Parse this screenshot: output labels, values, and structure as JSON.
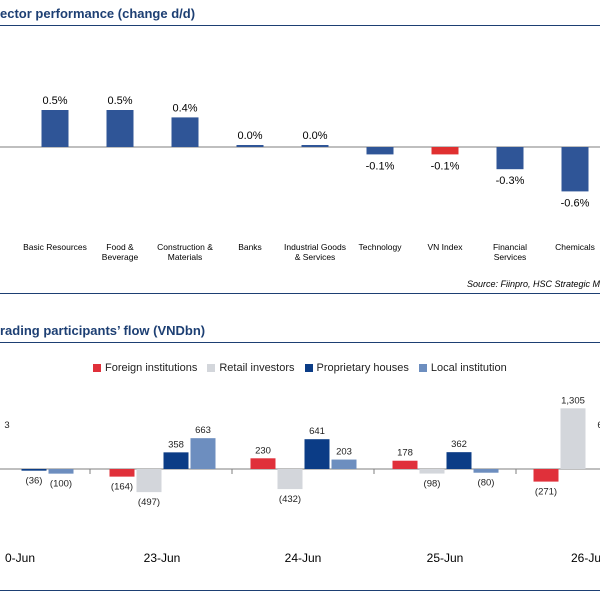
{
  "panels": {
    "sector": {
      "title": "ector performance (change d/d)",
      "source": "Source: Fiinpro, HSC Strategic M"
    },
    "flow": {
      "title": "rading participants’ flow (VNDbn)"
    }
  },
  "chart_data": [
    {
      "type": "bar",
      "title": "ector performance (change d/d)",
      "categories": [
        [
          "Basic Resources"
        ],
        [
          "Food &",
          "Beverage"
        ],
        [
          "Construction &",
          "Materials"
        ],
        [
          "Banks"
        ],
        [
          "Industrial Goods",
          "& Services"
        ],
        [
          "Technology"
        ],
        [
          "VN Index"
        ],
        [
          "Financial",
          "Services"
        ],
        [
          "Chemicals"
        ]
      ],
      "values": [
        0.5,
        0.5,
        0.4,
        0.0,
        0.0,
        -0.1,
        -0.1,
        -0.3,
        -0.6
      ],
      "value_labels": [
        "0.5%",
        "0.5%",
        "0.4%",
        "0.0%",
        "0.0%",
        "-0.1%",
        "-0.1%",
        "-0.3%",
        "-0.6%"
      ],
      "highlight_index": 6,
      "colors": {
        "bar": "#2f5597",
        "highlight": "#e03030"
      },
      "ylim": [
        -0.7,
        0.8
      ],
      "grid": false
    },
    {
      "type": "bar",
      "title": "rading participants’ flow (VNDbn)",
      "categories": [
        "0-Jun",
        "23-Jun",
        "24-Jun",
        "25-Jun",
        "26-Ju"
      ],
      "series": [
        {
          "name": "Foreign institutions",
          "color": "#e0303a",
          "values": [
            null,
            -164,
            230,
            178,
            -271
          ],
          "labels": [
            "",
            "(164)",
            "230",
            "178",
            "(271)"
          ]
        },
        {
          "name": "Retail investors",
          "color": "#d3d6db",
          "values": [
            null,
            -497,
            -432,
            -98,
            1305
          ],
          "labels": [
            "3",
            "(497)",
            "(432)",
            "(98)",
            "1,305"
          ]
        },
        {
          "name": "Proprietary houses",
          "color": "#0b3c86",
          "values": [
            -36,
            358,
            641,
            362,
            null
          ],
          "labels": [
            "(36)",
            "358",
            "641",
            "362",
            "6"
          ]
        },
        {
          "name": "Local institution",
          "color": "#6d8ebf",
          "values": [
            -100,
            663,
            203,
            -80,
            null
          ],
          "labels": [
            "(100)",
            "663",
            "203",
            "(80)",
            ""
          ]
        }
      ],
      "legend": "top",
      "grid": false
    }
  ]
}
